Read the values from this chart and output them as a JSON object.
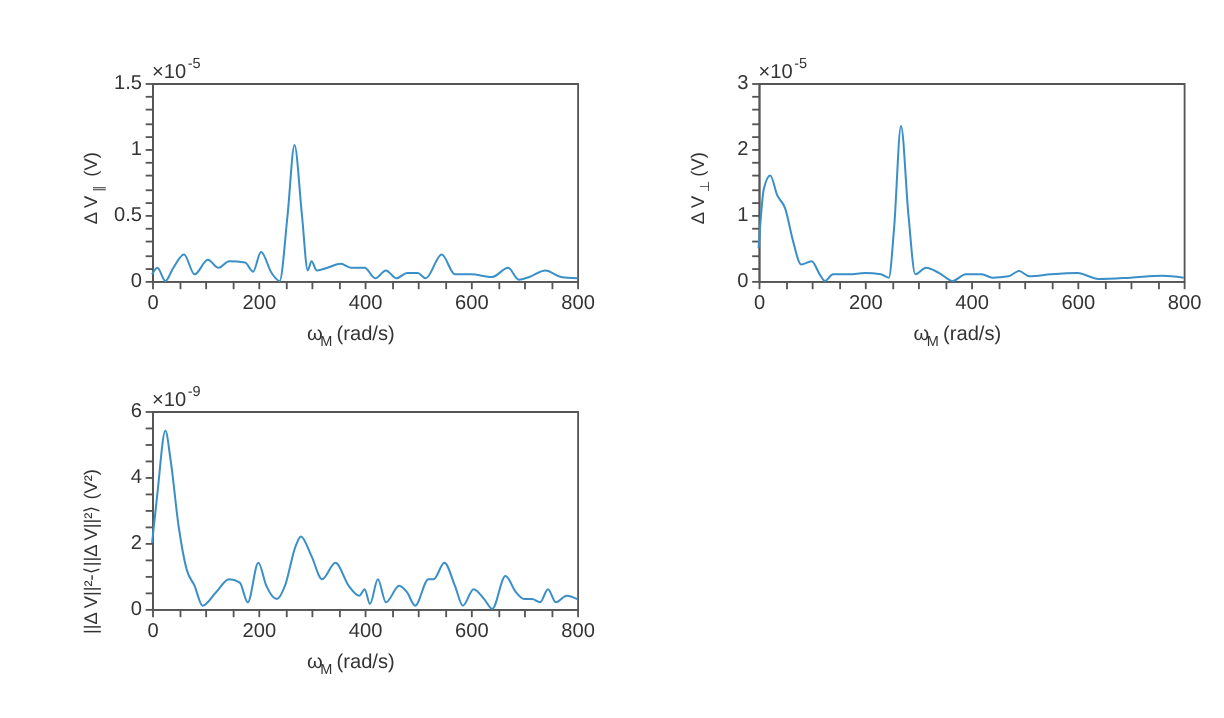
{
  "chart_data": [
    {
      "type": "line",
      "xlabel": "ω$_{M}$ (rad/s)",
      "ylabel": "Δ V$_{∥}$ (V)",
      "annotations": [
        "×10$^{-5}$"
      ],
      "x": [
        0,
        10,
        25,
        40,
        60,
        80,
        105,
        125,
        145,
        175,
        190,
        205,
        225,
        240,
        255,
        268,
        282,
        293,
        300,
        310,
        330,
        355,
        375,
        400,
        420,
        440,
        460,
        480,
        500,
        515,
        545,
        570,
        600,
        640,
        670,
        690,
        710,
        740,
        770,
        800
      ],
      "series": [
        {
          "color": "#3a8fc8",
          "values": [
            0.05,
            0.1,
            0.0,
            0.1,
            0.2,
            0.05,
            0.16,
            0.1,
            0.15,
            0.14,
            0.07,
            0.22,
            0.06,
            0.0,
            0.5,
            1.03,
            0.5,
            0.08,
            0.15,
            0.08,
            0.1,
            0.13,
            0.1,
            0.1,
            0.02,
            0.08,
            0.02,
            0.06,
            0.06,
            0.02,
            0.2,
            0.05,
            0.05,
            0.03,
            0.1,
            0.01,
            0.03,
            0.08,
            0.03,
            0.02
          ]
        }
      ],
      "xlim": [
        0,
        800
      ],
      "ylim": [
        0,
        1.5
      ],
      "xticks": [
        0,
        {
          "value": 50,
          "label": null
        },
        {
          "value": 100,
          "label": null
        },
        {
          "value": 150,
          "label": null
        },
        200,
        {
          "value": 250,
          "label": null
        },
        {
          "value": 300,
          "label": null
        },
        {
          "value": 350,
          "label": null
        },
        400,
        {
          "value": 450,
          "label": null
        },
        {
          "value": 500,
          "label": null
        },
        {
          "value": 550,
          "label": null
        },
        600,
        {
          "value": 650,
          "label": null
        },
        {
          "value": 700,
          "label": null
        },
        {
          "value": 750,
          "label": null
        },
        800
      ],
      "yticks": [
        0,
        {
          "value": 0.1,
          "label": null
        },
        {
          "value": 0.2,
          "label": null
        },
        {
          "value": 0.3,
          "label": null
        },
        {
          "value": 0.4,
          "label": null
        },
        0.5,
        {
          "value": 0.6,
          "label": null
        },
        {
          "value": 0.7,
          "label": null
        },
        {
          "value": 0.8,
          "label": null
        },
        {
          "value": 0.9,
          "label": null
        },
        1,
        {
          "value": 1.1,
          "label": null
        },
        {
          "value": 1.2,
          "label": null
        },
        {
          "value": 1.3,
          "label": null
        },
        {
          "value": 1.4,
          "label": null
        },
        1.5
      ],
      "grid": false
    },
    {
      "type": "line",
      "xlabel": "ω$_{M}$ (rad/s)",
      "ylabel": "Δ V$_{⊥}$ (V)",
      "annotations": [
        "×10$^{-5}$"
      ],
      "x": [
        0,
        10,
        22,
        35,
        50,
        65,
        80,
        100,
        115,
        125,
        140,
        170,
        200,
        230,
        245,
        255,
        268,
        282,
        295,
        315,
        340,
        365,
        390,
        420,
        440,
        470,
        490,
        510,
        550,
        600,
        640,
        700,
        760,
        800
      ],
      "series": [
        {
          "color": "#3a8fc8",
          "values": [
            0.5,
            1.4,
            1.6,
            1.3,
            1.1,
            0.6,
            0.25,
            0.3,
            0.1,
            0.0,
            0.1,
            0.1,
            0.12,
            0.1,
            0.05,
            0.8,
            2.35,
            1.0,
            0.1,
            0.2,
            0.12,
            0.0,
            0.1,
            0.1,
            0.05,
            0.07,
            0.15,
            0.07,
            0.1,
            0.12,
            0.03,
            0.05,
            0.08,
            0.05
          ]
        }
      ],
      "xlim": [
        0,
        800
      ],
      "ylim": [
        0,
        3
      ],
      "xticks": [
        0,
        {
          "value": 50,
          "label": null
        },
        {
          "value": 100,
          "label": null
        },
        {
          "value": 150,
          "label": null
        },
        200,
        {
          "value": 250,
          "label": null
        },
        {
          "value": 300,
          "label": null
        },
        {
          "value": 350,
          "label": null
        },
        400,
        {
          "value": 450,
          "label": null
        },
        {
          "value": 500,
          "label": null
        },
        {
          "value": 550,
          "label": null
        },
        600,
        {
          "value": 650,
          "label": null
        },
        {
          "value": 700,
          "label": null
        },
        {
          "value": 750,
          "label": null
        },
        800
      ],
      "yticks": [
        0,
        {
          "value": 0.2,
          "label": null
        },
        {
          "value": 0.4,
          "label": null
        },
        {
          "value": 0.6,
          "label": null
        },
        {
          "value": 0.8,
          "label": null
        },
        1,
        {
          "value": 1.2,
          "label": null
        },
        {
          "value": 1.4,
          "label": null
        },
        {
          "value": 1.6,
          "label": null
        },
        {
          "value": 1.8,
          "label": null
        },
        2,
        {
          "value": 2.2,
          "label": null
        },
        {
          "value": 2.4,
          "label": null
        },
        {
          "value": 2.6,
          "label": null
        },
        {
          "value": 2.8,
          "label": null
        },
        3
      ],
      "grid": false
    },
    {
      "type": "line",
      "xlabel": "ω$_{M}$ (rad/s)",
      "ylabel": "||Δ V||²-⟨||Δ V||²⟩ (V²)",
      "annotations": [
        "×10$^{-9}$"
      ],
      "x": [
        0,
        10,
        25,
        35,
        50,
        65,
        80,
        95,
        120,
        145,
        165,
        180,
        200,
        215,
        235,
        250,
        270,
        280,
        300,
        320,
        345,
        370,
        390,
        400,
        410,
        425,
        440,
        465,
        480,
        495,
        520,
        530,
        550,
        570,
        585,
        605,
        625,
        640,
        665,
        685,
        700,
        715,
        730,
        745,
        760,
        780,
        800
      ],
      "series": [
        {
          "color": "#3a8fc8",
          "values": [
            2.0,
            3.5,
            5.4,
            4.5,
            2.5,
            1.2,
            0.7,
            0.1,
            0.5,
            0.9,
            0.8,
            0.2,
            1.4,
            0.7,
            0.3,
            0.7,
            1.9,
            2.2,
            1.6,
            0.9,
            1.4,
            0.7,
            0.4,
            0.6,
            0.15,
            0.9,
            0.2,
            0.7,
            0.5,
            0.1,
            0.9,
            0.9,
            1.4,
            0.7,
            0.1,
            0.6,
            0.3,
            0.0,
            1.0,
            0.5,
            0.3,
            0.3,
            0.2,
            0.6,
            0.2,
            0.4,
            0.3
          ]
        }
      ],
      "xlim": [
        0,
        800
      ],
      "ylim": [
        0,
        6
      ],
      "xticks": [
        0,
        {
          "value": 50,
          "label": null
        },
        {
          "value": 100,
          "label": null
        },
        {
          "value": 150,
          "label": null
        },
        200,
        {
          "value": 250,
          "label": null
        },
        {
          "value": 300,
          "label": null
        },
        {
          "value": 350,
          "label": null
        },
        400,
        {
          "value": 450,
          "label": null
        },
        {
          "value": 500,
          "label": null
        },
        {
          "value": 550,
          "label": null
        },
        600,
        {
          "value": 650,
          "label": null
        },
        {
          "value": 700,
          "label": null
        },
        {
          "value": 750,
          "label": null
        },
        800
      ],
      "yticks": [
        0,
        {
          "value": 0.5,
          "label": null
        },
        {
          "value": 1,
          "label": null
        },
        {
          "value": 1.5,
          "label": null
        },
        2,
        {
          "value": 2.5,
          "label": null
        },
        {
          "value": 3,
          "label": null
        },
        {
          "value": 3.5,
          "label": null
        },
        4,
        {
          "value": 4.5,
          "label": null
        },
        {
          "value": 5,
          "label": null
        },
        {
          "value": 5.5,
          "label": null
        },
        6
      ],
      "grid": false
    }
  ]
}
